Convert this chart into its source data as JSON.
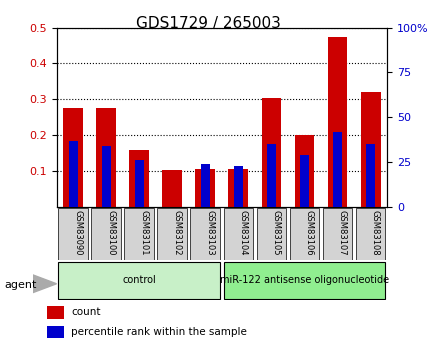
{
  "title": "GDS1729 / 265003",
  "samples": [
    "GSM83090",
    "GSM83100",
    "GSM83101",
    "GSM83102",
    "GSM83103",
    "GSM83104",
    "GSM83105",
    "GSM83106",
    "GSM83107",
    "GSM83108"
  ],
  "red_values": [
    0.275,
    0.275,
    0.16,
    0.102,
    0.105,
    0.105,
    0.305,
    0.202,
    0.475,
    0.32
  ],
  "blue_values": [
    37,
    34,
    26,
    0,
    24,
    23,
    35,
    29,
    42,
    35
  ],
  "ylim_left": [
    0.0,
    0.5
  ],
  "ylim_right": [
    0,
    100
  ],
  "yticks_left": [
    0.1,
    0.2,
    0.3,
    0.4,
    0.5
  ],
  "yticks_right": [
    0,
    25,
    50,
    75,
    100
  ],
  "ytick_right_labels": [
    "0",
    "25",
    "50",
    "75",
    "100%"
  ],
  "groups": [
    {
      "label": "control",
      "start": 0,
      "end": 5,
      "color": "#c8f0c8"
    },
    {
      "label": "miR-122 antisense oligonucleotide",
      "start": 5,
      "end": 10,
      "color": "#90ee90"
    }
  ],
  "bar_width": 0.6,
  "red_color": "#cc0000",
  "blue_color": "#0000cc",
  "grid_color": "#000000",
  "bg_color": "#d3d3d3",
  "plot_bg": "#ffffff",
  "agent_label": "agent",
  "legend_count": "count",
  "legend_pct": "percentile rank within the sample",
  "title_fontsize": 11,
  "label_fontsize": 8
}
